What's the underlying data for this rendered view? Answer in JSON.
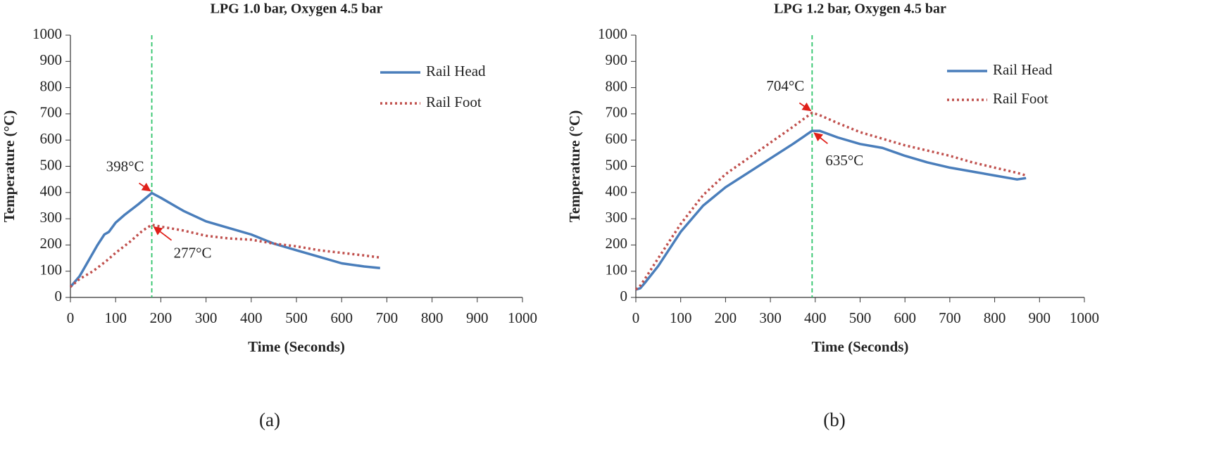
{
  "chart_data": [
    {
      "type": "line",
      "title": "LPG 1.0 bar, Oxygen 4.5 bar",
      "xlabel": "Time (Seconds)",
      "ylabel": "Temperature (°C)",
      "panel_label": "(a)",
      "xlim": [
        0,
        1000
      ],
      "ylim": [
        0,
        1000
      ],
      "xticks": [
        0,
        100,
        200,
        300,
        400,
        500,
        600,
        700,
        800,
        900,
        1000
      ],
      "yticks": [
        0,
        100,
        200,
        300,
        400,
        500,
        600,
        700,
        800,
        900,
        1000
      ],
      "vline": 180,
      "series": [
        {
          "name": "Rail Head",
          "color": "#4a7ebb",
          "style": "solid",
          "x": [
            0,
            20,
            40,
            60,
            75,
            85,
            100,
            120,
            150,
            180,
            200,
            250,
            300,
            350,
            400,
            450,
            500,
            550,
            600,
            650,
            685
          ],
          "values": [
            40,
            80,
            140,
            200,
            240,
            250,
            285,
            315,
            355,
            398,
            380,
            330,
            290,
            265,
            240,
            205,
            180,
            155,
            130,
            118,
            112
          ]
        },
        {
          "name": "Rail Foot",
          "color": "#c0504d",
          "style": "dotted",
          "x": [
            0,
            20,
            50,
            80,
            100,
            130,
            160,
            180,
            200,
            250,
            300,
            350,
            400,
            450,
            500,
            550,
            600,
            650,
            685
          ],
          "values": [
            40,
            70,
            100,
            140,
            170,
            210,
            255,
            277,
            270,
            255,
            235,
            225,
            220,
            205,
            195,
            180,
            170,
            160,
            152
          ]
        }
      ],
      "annotations": [
        {
          "label": "398°C",
          "x": 180,
          "y": 398
        },
        {
          "label": "277°C",
          "x": 180,
          "y": 277
        }
      ]
    },
    {
      "type": "line",
      "title": "LPG 1.2 bar, Oxygen 4.5 bar",
      "xlabel": "Time (Seconds)",
      "ylabel": "Temperature (°C)",
      "panel_label": "(b)",
      "xlim": [
        0,
        1000
      ],
      "ylim": [
        0,
        1000
      ],
      "xticks": [
        0,
        100,
        200,
        300,
        400,
        500,
        600,
        700,
        800,
        900,
        1000
      ],
      "yticks": [
        0,
        100,
        200,
        300,
        400,
        500,
        600,
        700,
        800,
        900,
        1000
      ],
      "vline": 393,
      "series": [
        {
          "name": "Rail Head",
          "color": "#4a7ebb",
          "style": "solid",
          "x": [
            0,
            10,
            20,
            50,
            100,
            150,
            200,
            250,
            300,
            350,
            393,
            410,
            450,
            500,
            550,
            600,
            650,
            700,
            750,
            800,
            850,
            870
          ],
          "values": [
            30,
            35,
            55,
            120,
            250,
            350,
            420,
            475,
            530,
            585,
            635,
            635,
            610,
            585,
            570,
            540,
            515,
            495,
            480,
            465,
            450,
            455
          ]
        },
        {
          "name": "Rail Foot",
          "color": "#c0504d",
          "style": "dotted",
          "x": [
            0,
            10,
            20,
            50,
            100,
            150,
            200,
            250,
            300,
            350,
            393,
            410,
            450,
            500,
            550,
            600,
            650,
            700,
            750,
            800,
            850,
            870
          ],
          "values": [
            30,
            45,
            70,
            150,
            280,
            390,
            470,
            530,
            590,
            650,
            704,
            695,
            665,
            630,
            605,
            580,
            560,
            540,
            515,
            495,
            475,
            465
          ]
        }
      ],
      "annotations": [
        {
          "label": "704°C",
          "x": 393,
          "y": 704
        },
        {
          "label": "635°C",
          "x": 393,
          "y": 635
        }
      ]
    }
  ]
}
